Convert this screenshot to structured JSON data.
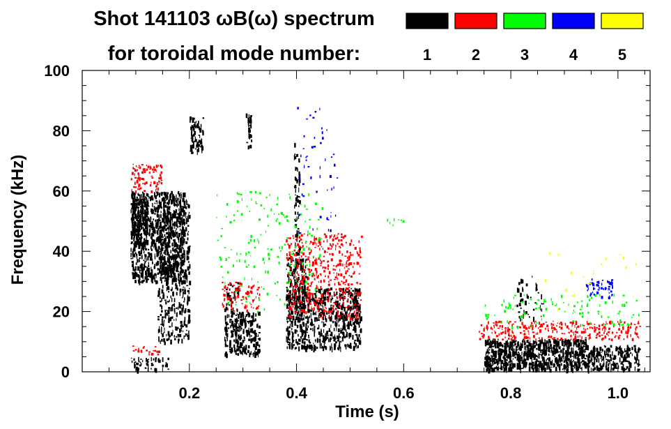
{
  "chart_data": {
    "type": "heatmap",
    "title_line1": "Shot 141103 ωB(ω) spectrum",
    "title_line2": "for toroidal mode number:",
    "xlabel": "Time (s)",
    "ylabel": "Frequency (kHz)",
    "xlim": [
      0.0,
      1.06
    ],
    "ylim": [
      0,
      100
    ],
    "x_ticks": [
      {
        "value": 0.2,
        "label": "0.2"
      },
      {
        "value": 0.4,
        "label": "0.4"
      },
      {
        "value": 0.6,
        "label": "0.6"
      },
      {
        "value": 0.8,
        "label": "0.8"
      },
      {
        "value": 1.0,
        "label": "1.0"
      }
    ],
    "y_ticks": [
      {
        "value": 0,
        "label": "0"
      },
      {
        "value": 20,
        "label": "20"
      },
      {
        "value": 40,
        "label": "40"
      },
      {
        "value": 60,
        "label": "60"
      },
      {
        "value": 80,
        "label": "80"
      },
      {
        "value": 100,
        "label": "100"
      }
    ],
    "legend": [
      {
        "mode": "1",
        "color": "#000000"
      },
      {
        "mode": "2",
        "color": "#ff0000"
      },
      {
        "mode": "3",
        "color": "#00ff00"
      },
      {
        "mode": "4",
        "color": "#0000ff"
      },
      {
        "mode": "5",
        "color": "#ffff00"
      }
    ],
    "legend_placement": "top-right",
    "grid": false,
    "regions": [
      {
        "mode": 1,
        "t0": 0.09,
        "t1": 0.19,
        "f0": 30,
        "f1": 60,
        "density": 1.0
      },
      {
        "mode": 1,
        "t0": 0.09,
        "t1": 0.12,
        "f0": 42,
        "f1": 58,
        "density": 1.2
      },
      {
        "mode": 1,
        "t0": 0.14,
        "t1": 0.2,
        "f0": 10,
        "f1": 58,
        "density": 0.6
      },
      {
        "mode": 1,
        "t0": 0.09,
        "t1": 0.16,
        "f0": 1,
        "f1": 5,
        "density": 0.7
      },
      {
        "mode": 1,
        "t0": 0.2,
        "t1": 0.225,
        "f0": 73,
        "f1": 85,
        "density": 1.0
      },
      {
        "mode": 1,
        "t0": 0.265,
        "t1": 0.33,
        "f0": 6,
        "f1": 20,
        "density": 1.0
      },
      {
        "mode": 1,
        "t0": 0.265,
        "t1": 0.29,
        "f0": 20,
        "f1": 30,
        "density": 0.5
      },
      {
        "mode": 1,
        "t0": 0.305,
        "t1": 0.315,
        "f0": 75,
        "f1": 86,
        "density": 1.0
      },
      {
        "mode": 1,
        "t0": 0.38,
        "t1": 0.52,
        "f0": 8,
        "f1": 28,
        "density": 0.9
      },
      {
        "mode": 1,
        "t0": 0.38,
        "t1": 0.42,
        "f0": 20,
        "f1": 38,
        "density": 0.8
      },
      {
        "mode": 1,
        "t0": 0.395,
        "t1": 0.405,
        "f0": 38,
        "f1": 76,
        "density": 0.6
      },
      {
        "mode": 1,
        "t0": 0.75,
        "t1": 0.94,
        "f0": 1,
        "f1": 11,
        "density": 1.5
      },
      {
        "mode": 1,
        "t0": 0.94,
        "t1": 1.04,
        "f0": 1,
        "f1": 9,
        "density": 1.0
      },
      {
        "mode": 1,
        "t0": 0.81,
        "t1": 0.86,
        "f0": 18,
        "f1": 32,
        "density": 0.25
      },
      {
        "mode": 2,
        "t0": 0.09,
        "t1": 0.15,
        "f0": 60,
        "f1": 69,
        "density": 0.6
      },
      {
        "mode": 2,
        "t0": 0.26,
        "t1": 0.33,
        "f0": 20,
        "f1": 30,
        "density": 0.4
      },
      {
        "mode": 2,
        "t0": 0.09,
        "t1": 0.15,
        "f0": 6,
        "f1": 9,
        "density": 0.4
      },
      {
        "mode": 2,
        "t0": 0.38,
        "t1": 0.52,
        "f0": 18,
        "f1": 46,
        "density": 0.45
      },
      {
        "mode": 2,
        "t0": 0.74,
        "t1": 1.04,
        "f0": 11,
        "f1": 17,
        "density": 0.6
      },
      {
        "mode": 3,
        "t0": 0.25,
        "t1": 0.45,
        "f0": 20,
        "f1": 60,
        "density": 0.08
      },
      {
        "mode": 3,
        "t0": 0.75,
        "t1": 1.04,
        "f0": 15,
        "f1": 26,
        "density": 0.12
      },
      {
        "mode": 3,
        "t0": 0.56,
        "t1": 0.6,
        "f0": 49,
        "f1": 51,
        "density": 0.3
      },
      {
        "mode": 4,
        "t0": 0.94,
        "t1": 0.99,
        "f0": 25,
        "f1": 31,
        "density": 0.6
      },
      {
        "mode": 4,
        "t0": 0.4,
        "t1": 0.48,
        "f0": 45,
        "f1": 90,
        "density": 0.05
      },
      {
        "mode": 5,
        "t0": 0.85,
        "t1": 1.04,
        "f0": 20,
        "f1": 40,
        "density": 0.02
      }
    ]
  }
}
